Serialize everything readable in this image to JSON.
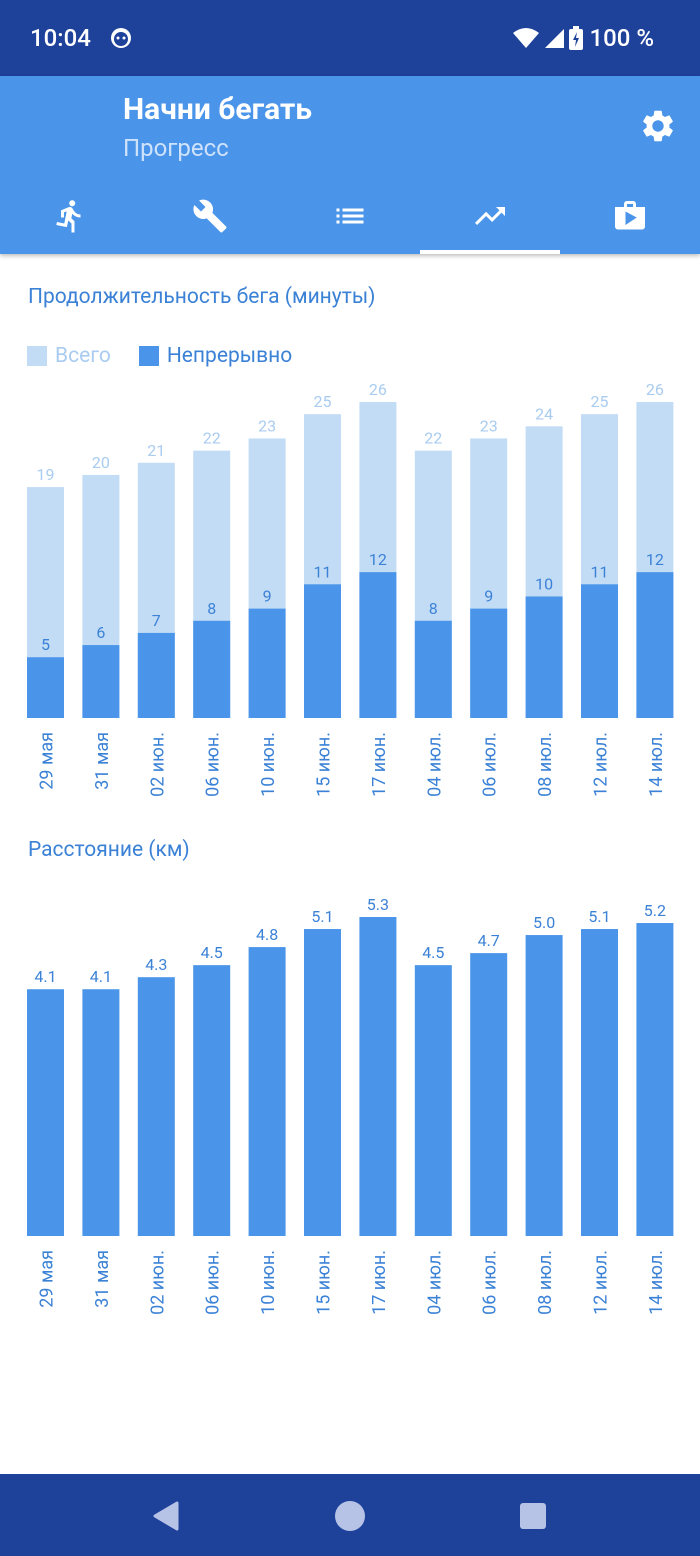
{
  "status_bar": {
    "time": "10:04",
    "battery": "100 %"
  },
  "app_bar": {
    "title": "Начни бегать",
    "subtitle": "Прогресс",
    "settings_icon": "gear-icon"
  },
  "tabs": [
    {
      "icon": "runner-icon",
      "active": false
    },
    {
      "icon": "wrench-icon",
      "active": false
    },
    {
      "icon": "list-icon",
      "active": false
    },
    {
      "icon": "trending-up-icon",
      "active": true
    },
    {
      "icon": "shop-bag-icon",
      "active": false
    }
  ],
  "colors": {
    "accent": "#4a95ea",
    "dark": "#1e419a",
    "bar_total": "#c3dcf6",
    "bar_continuous": "#4a95ea",
    "label_total": "#a9ccf0",
    "text_blue": "#3b82d6"
  },
  "chart_duration": {
    "title": "Продолжительность бега (минуты)",
    "legend": {
      "total": "Всего",
      "continuous": "Непрерывно"
    }
  },
  "chart_distance": {
    "title": "Расстояние (км)"
  },
  "chart_data": [
    {
      "type": "bar",
      "title": "Продолжительность бега (минуты)",
      "categories": [
        "29 мая",
        "31 мая",
        "02 июн.",
        "06 июн.",
        "10 июн.",
        "15 июн.",
        "17 июн.",
        "04 июл.",
        "06 июл.",
        "08 июл.",
        "12 июл.",
        "14 июл."
      ],
      "series": [
        {
          "name": "Всего",
          "values": [
            19,
            20,
            21,
            22,
            23,
            25,
            26,
            22,
            23,
            24,
            25,
            26
          ]
        },
        {
          "name": "Непрерывно",
          "values": [
            5,
            6,
            7,
            8,
            9,
            11,
            12,
            8,
            9,
            10,
            11,
            12
          ]
        }
      ],
      "ylim": [
        0,
        26
      ],
      "legend_position": "top-left",
      "grid": false
    },
    {
      "type": "bar",
      "title": "Расстояние (км)",
      "categories": [
        "29 мая",
        "31 мая",
        "02 июн.",
        "06 июн.",
        "10 июн.",
        "15 июн.",
        "17 июн.",
        "04 июл.",
        "06 июл.",
        "08 июл.",
        "12 июл.",
        "14 июл."
      ],
      "values": [
        4.1,
        4.1,
        4.3,
        4.5,
        4.8,
        5.1,
        5.3,
        4.5,
        4.7,
        5.0,
        5.1,
        5.2
      ],
      "value_labels": [
        "4.1",
        "4.1",
        "4.3",
        "4.5",
        "4.8",
        "5.1",
        "5.3",
        "4.5",
        "4.7",
        "5.0",
        "5.1",
        "5.2"
      ],
      "grid": false
    }
  ],
  "nav_bar": {
    "back_icon": "back-triangle-icon",
    "home_icon": "home-circle-icon",
    "recents_icon": "recents-square-icon"
  }
}
